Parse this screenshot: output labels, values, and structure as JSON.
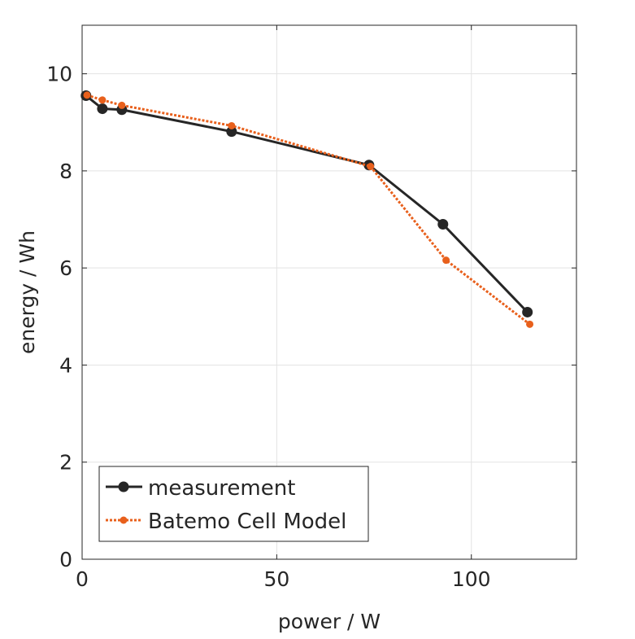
{
  "chart_data": {
    "type": "line",
    "title": "",
    "xlabel": "power / W",
    "ylabel": "energy / Wh",
    "xlim": [
      0,
      127
    ],
    "ylim": [
      0,
      11
    ],
    "xticks": [
      0,
      50,
      100
    ],
    "xtick_labels": [
      "0",
      "50",
      "100"
    ],
    "yticks": [
      0,
      2,
      4,
      6,
      8,
      10
    ],
    "ytick_labels": [
      "0",
      "2",
      "4",
      "6",
      "8",
      "10"
    ],
    "grid": true,
    "legend_position": "bottom-left",
    "series": [
      {
        "name": "measurement",
        "color": "#262626",
        "style": "solid",
        "marker": "circle-large",
        "x": [
          1.0,
          5.2,
          10.2,
          38.4,
          73.7,
          92.7,
          114.4
        ],
        "y": [
          9.55,
          9.28,
          9.26,
          8.81,
          8.12,
          6.9,
          5.09
        ]
      },
      {
        "name": "Batemo Cell Model",
        "color": "#E8601C",
        "style": "dotted",
        "marker": "circle-small",
        "x": [
          1.25,
          5.2,
          10.2,
          38.4,
          74.1,
          93.5,
          115.0
        ],
        "y": [
          9.56,
          9.46,
          9.35,
          8.93,
          8.09,
          6.16,
          4.84
        ]
      }
    ]
  }
}
